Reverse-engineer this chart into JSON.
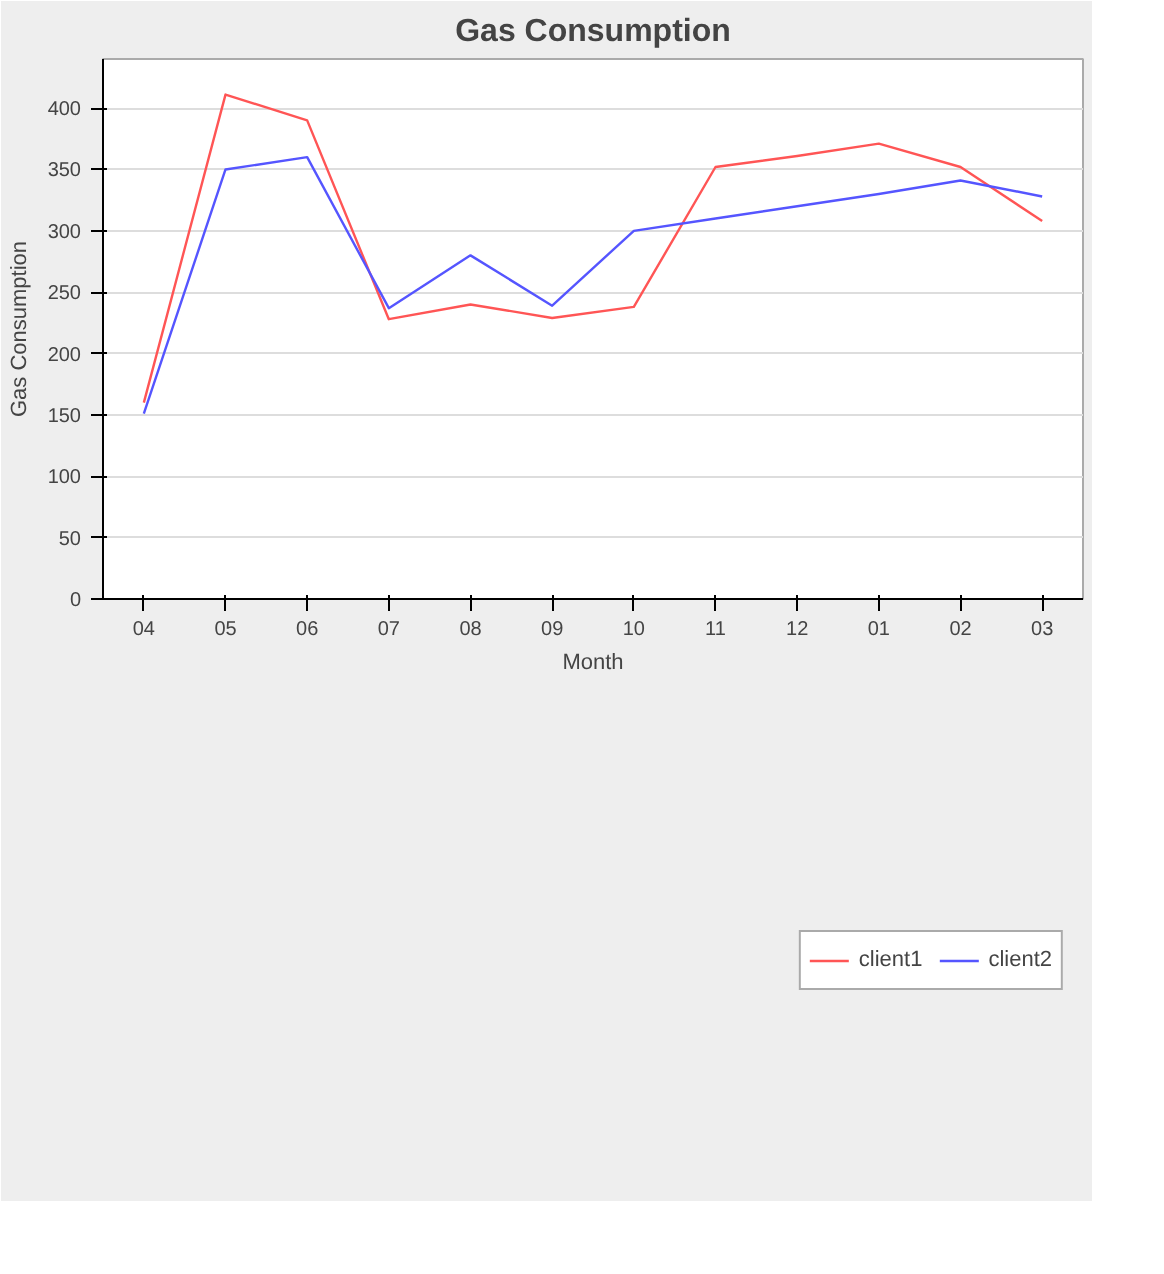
{
  "chart_data": {
    "type": "line",
    "title": "Gas Consumption",
    "xlabel": "Month",
    "ylabel": "Gas Consumption",
    "categories": [
      "04",
      "05",
      "06",
      "07",
      "08",
      "09",
      "10",
      "11",
      "12",
      "01",
      "02",
      "03"
    ],
    "series": [
      {
        "name": "client1",
        "color": "#ff5555",
        "values": [
          160,
          411,
          390,
          228,
          240,
          229,
          238,
          352,
          361,
          371,
          352,
          308
        ]
      },
      {
        "name": "client2",
        "color": "#5555ff",
        "values": [
          151,
          350,
          360,
          237,
          280,
          239,
          300,
          310,
          320,
          330,
          341,
          328
        ]
      }
    ],
    "ylim": [
      0,
      440
    ],
    "yticks": [
      0,
      50,
      100,
      150,
      200,
      250,
      300,
      350,
      400
    ],
    "grid": "y",
    "legend": "bottom"
  }
}
